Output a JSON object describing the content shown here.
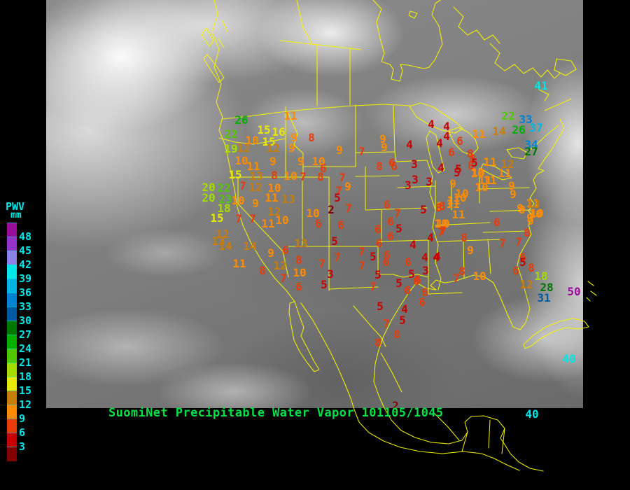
{
  "title": {
    "text": "SuomiNet Precipitable Water Vapor 101105/1045",
    "color": "#00E148"
  },
  "legend": {
    "heading": "PWV",
    "unit": "mm",
    "label_color": "#00E6E6",
    "below_color": "#820000",
    "entries": [
      {
        "value": 48,
        "color": "#9A0D9A"
      },
      {
        "value": 45,
        "color": "#9632C8"
      },
      {
        "value": 42,
        "color": "#8C82E6"
      },
      {
        "value": 39,
        "color": "#00E6E6"
      },
      {
        "value": 36,
        "color": "#00B4E6"
      },
      {
        "value": 33,
        "color": "#0082D2"
      },
      {
        "value": 30,
        "color": "#005AA0"
      },
      {
        "value": 27,
        "color": "#007800"
      },
      {
        "value": 24,
        "color": "#00AF00"
      },
      {
        "value": 21,
        "color": "#50C800"
      },
      {
        "value": 18,
        "color": "#A5DC00"
      },
      {
        "value": 15,
        "color": "#E8E800"
      },
      {
        "value": 12,
        "color": "#C87D0A"
      },
      {
        "value": 9,
        "color": "#FF8C00"
      },
      {
        "value": 6,
        "color": "#E63C0A"
      },
      {
        "value": 3,
        "color": "#C80000"
      }
    ]
  },
  "map": {
    "border_color": "#F5F500"
  },
  "stations": [
    [
      26,
      345,
      172
    ],
    [
      22,
      330,
      192
    ],
    [
      11,
      415,
      166
    ],
    [
      15,
      377,
      186
    ],
    [
      16,
      398,
      189
    ],
    [
      10,
      360,
      201
    ],
    [
      15,
      384,
      203
    ],
    [
      19,
      330,
      213
    ],
    [
      12,
      348,
      212
    ],
    [
      12,
      390,
      212
    ],
    [
      9,
      420,
      197
    ],
    [
      8,
      445,
      197
    ],
    [
      9,
      417,
      212
    ],
    [
      10,
      345,
      230
    ],
    [
      11,
      362,
      238
    ],
    [
      9,
      390,
      231
    ],
    [
      9,
      430,
      231
    ],
    [
      10,
      455,
      231
    ],
    [
      6,
      462,
      241
    ],
    [
      15,
      336,
      250
    ],
    [
      13,
      366,
      252
    ],
    [
      8,
      392,
      251
    ],
    [
      10,
      415,
      252
    ],
    [
      7,
      433,
      253
    ],
    [
      8,
      458,
      253
    ],
    [
      7,
      489,
      254
    ],
    [
      20,
      298,
      268
    ],
    [
      22,
      320,
      269
    ],
    [
      7,
      347,
      266
    ],
    [
      12,
      365,
      268
    ],
    [
      10,
      392,
      269
    ],
    [
      20,
      298,
      283
    ],
    [
      23,
      322,
      285
    ],
    [
      18,
      320,
      298
    ],
    [
      10,
      340,
      287
    ],
    [
      9,
      365,
      291
    ],
    [
      9,
      485,
      215
    ],
    [
      7,
      517,
      217
    ],
    [
      9,
      547,
      199
    ],
    [
      9,
      549,
      211
    ],
    [
      8,
      542,
      238
    ],
    [
      6,
      563,
      238
    ],
    [
      7,
      484,
      273
    ],
    [
      9,
      497,
      267
    ],
    [
      4,
      616,
      178
    ],
    [
      4,
      638,
      181
    ],
    [
      4,
      585,
      207
    ],
    [
      4,
      628,
      205
    ],
    [
      4,
      638,
      195
    ],
    [
      6,
      657,
      202
    ],
    [
      6,
      645,
      218
    ],
    [
      8,
      672,
      220
    ],
    [
      6,
      560,
      233
    ],
    [
      3,
      592,
      235
    ],
    [
      8,
      673,
      237
    ],
    [
      4,
      630,
      240
    ],
    [
      5,
      655,
      242
    ],
    [
      10,
      683,
      247
    ],
    [
      11,
      700,
      232
    ],
    [
      3,
      593,
      257
    ],
    [
      3,
      613,
      260
    ],
    [
      3,
      583,
      265
    ],
    [
      9,
      647,
      263
    ],
    [
      11,
      700,
      258
    ],
    [
      10,
      688,
      268
    ],
    [
      10,
      660,
      277
    ],
    [
      11,
      648,
      287
    ],
    [
      9,
      628,
      295
    ],
    [
      41,
      773,
      123
    ],
    [
      22,
      726,
      166
    ],
    [
      33,
      751,
      171
    ],
    [
      37,
      766,
      183
    ],
    [
      26,
      741,
      186
    ],
    [
      14,
      713,
      188
    ],
    [
      11,
      684,
      192
    ],
    [
      34,
      759,
      207
    ],
    [
      27,
      759,
      217
    ],
    [
      8,
      675,
      227
    ],
    [
      5,
      678,
      233
    ],
    [
      5,
      653,
      247
    ],
    [
      10,
      682,
      248
    ],
    [
      12,
      725,
      235
    ],
    [
      11,
      721,
      248
    ],
    [
      11,
      693,
      258
    ],
    [
      9,
      731,
      266
    ],
    [
      9,
      733,
      278
    ],
    [
      11,
      761,
      291
    ],
    [
      10,
      765,
      306
    ],
    [
      9,
      746,
      300
    ],
    [
      9,
      758,
      316
    ],
    [
      6,
      710,
      318
    ],
    [
      8,
      753,
      333
    ],
    [
      7,
      718,
      348
    ],
    [
      7,
      741,
      346
    ],
    [
      8,
      627,
      297
    ],
    [
      10,
      657,
      283
    ],
    [
      11,
      647,
      292
    ],
    [
      11,
      655,
      307
    ],
    [
      10,
      630,
      320
    ],
    [
      7,
      630,
      332
    ],
    [
      9,
      743,
      298
    ],
    [
      13,
      762,
      292
    ],
    [
      10,
      767,
      305
    ],
    [
      9,
      757,
      312
    ],
    [
      8,
      663,
      340
    ],
    [
      9,
      672,
      358
    ],
    [
      4,
      623,
      368
    ],
    [
      6,
      747,
      368
    ],
    [
      5,
      747,
      375
    ],
    [
      8,
      759,
      383
    ],
    [
      6,
      737,
      387
    ],
    [
      8,
      660,
      388
    ],
    [
      7,
      652,
      398
    ],
    [
      10,
      685,
      395
    ],
    [
      18,
      773,
      395
    ],
    [
      12,
      752,
      407
    ],
    [
      28,
      781,
      411
    ],
    [
      31,
      777,
      426
    ],
    [
      50,
      820,
      417
    ],
    [
      40,
      813,
      513
    ],
    [
      40,
      760,
      592
    ],
    [
      5,
      482,
      283
    ],
    [
      2,
      473,
      300
    ],
    [
      7,
      498,
      298
    ],
    [
      6,
      487,
      322
    ],
    [
      6,
      553,
      293
    ],
    [
      7,
      568,
      305
    ],
    [
      6,
      558,
      317
    ],
    [
      5,
      570,
      327
    ],
    [
      6,
      540,
      328
    ],
    [
      6,
      558,
      338
    ],
    [
      5,
      605,
      300
    ],
    [
      8,
      632,
      295
    ],
    [
      10,
      633,
      320
    ],
    [
      7,
      633,
      330
    ],
    [
      4,
      615,
      340
    ],
    [
      5,
      478,
      345
    ],
    [
      6,
      542,
      348
    ],
    [
      4,
      590,
      350
    ],
    [
      7,
      517,
      360
    ],
    [
      7,
      482,
      368
    ],
    [
      5,
      533,
      367
    ],
    [
      6,
      553,
      365
    ],
    [
      6,
      552,
      375
    ],
    [
      6,
      583,
      375
    ],
    [
      4,
      607,
      368
    ],
    [
      4,
      625,
      367
    ],
    [
      7,
      517,
      380
    ],
    [
      3,
      472,
      392
    ],
    [
      3,
      608,
      387
    ],
    [
      5,
      540,
      393
    ],
    [
      5,
      588,
      392
    ],
    [
      6,
      597,
      400
    ],
    [
      11,
      388,
      283
    ],
    [
      13,
      412,
      285
    ],
    [
      12,
      392,
      303
    ],
    [
      11,
      383,
      320
    ],
    [
      10,
      403,
      315
    ],
    [
      10,
      447,
      305
    ],
    [
      6,
      455,
      320
    ],
    [
      15,
      310,
      312
    ],
    [
      7,
      341,
      313
    ],
    [
      7,
      361,
      313
    ],
    [
      12,
      318,
      335
    ],
    [
      13,
      312,
      345
    ],
    [
      14,
      322,
      352
    ],
    [
      14,
      357,
      352
    ],
    [
      13,
      430,
      348
    ],
    [
      9,
      387,
      362
    ],
    [
      6,
      408,
      358
    ],
    [
      8,
      427,
      372
    ],
    [
      11,
      342,
      377
    ],
    [
      12,
      400,
      380
    ],
    [
      8,
      375,
      387
    ],
    [
      10,
      428,
      390
    ],
    [
      7,
      405,
      398
    ],
    [
      7,
      460,
      377
    ],
    [
      6,
      427,
      410
    ],
    [
      5,
      463,
      407
    ],
    [
      7,
      533,
      410
    ],
    [
      5,
      570,
      405
    ],
    [
      6,
      582,
      415
    ],
    [
      6,
      595,
      402
    ],
    [
      6,
      607,
      418
    ],
    [
      6,
      603,
      432
    ],
    [
      5,
      543,
      438
    ],
    [
      4,
      578,
      442
    ],
    [
      5,
      575,
      458
    ],
    [
      7,
      552,
      463
    ],
    [
      8,
      567,
      478
    ],
    [
      8,
      540,
      490
    ],
    [
      2,
      565,
      580
    ]
  ]
}
